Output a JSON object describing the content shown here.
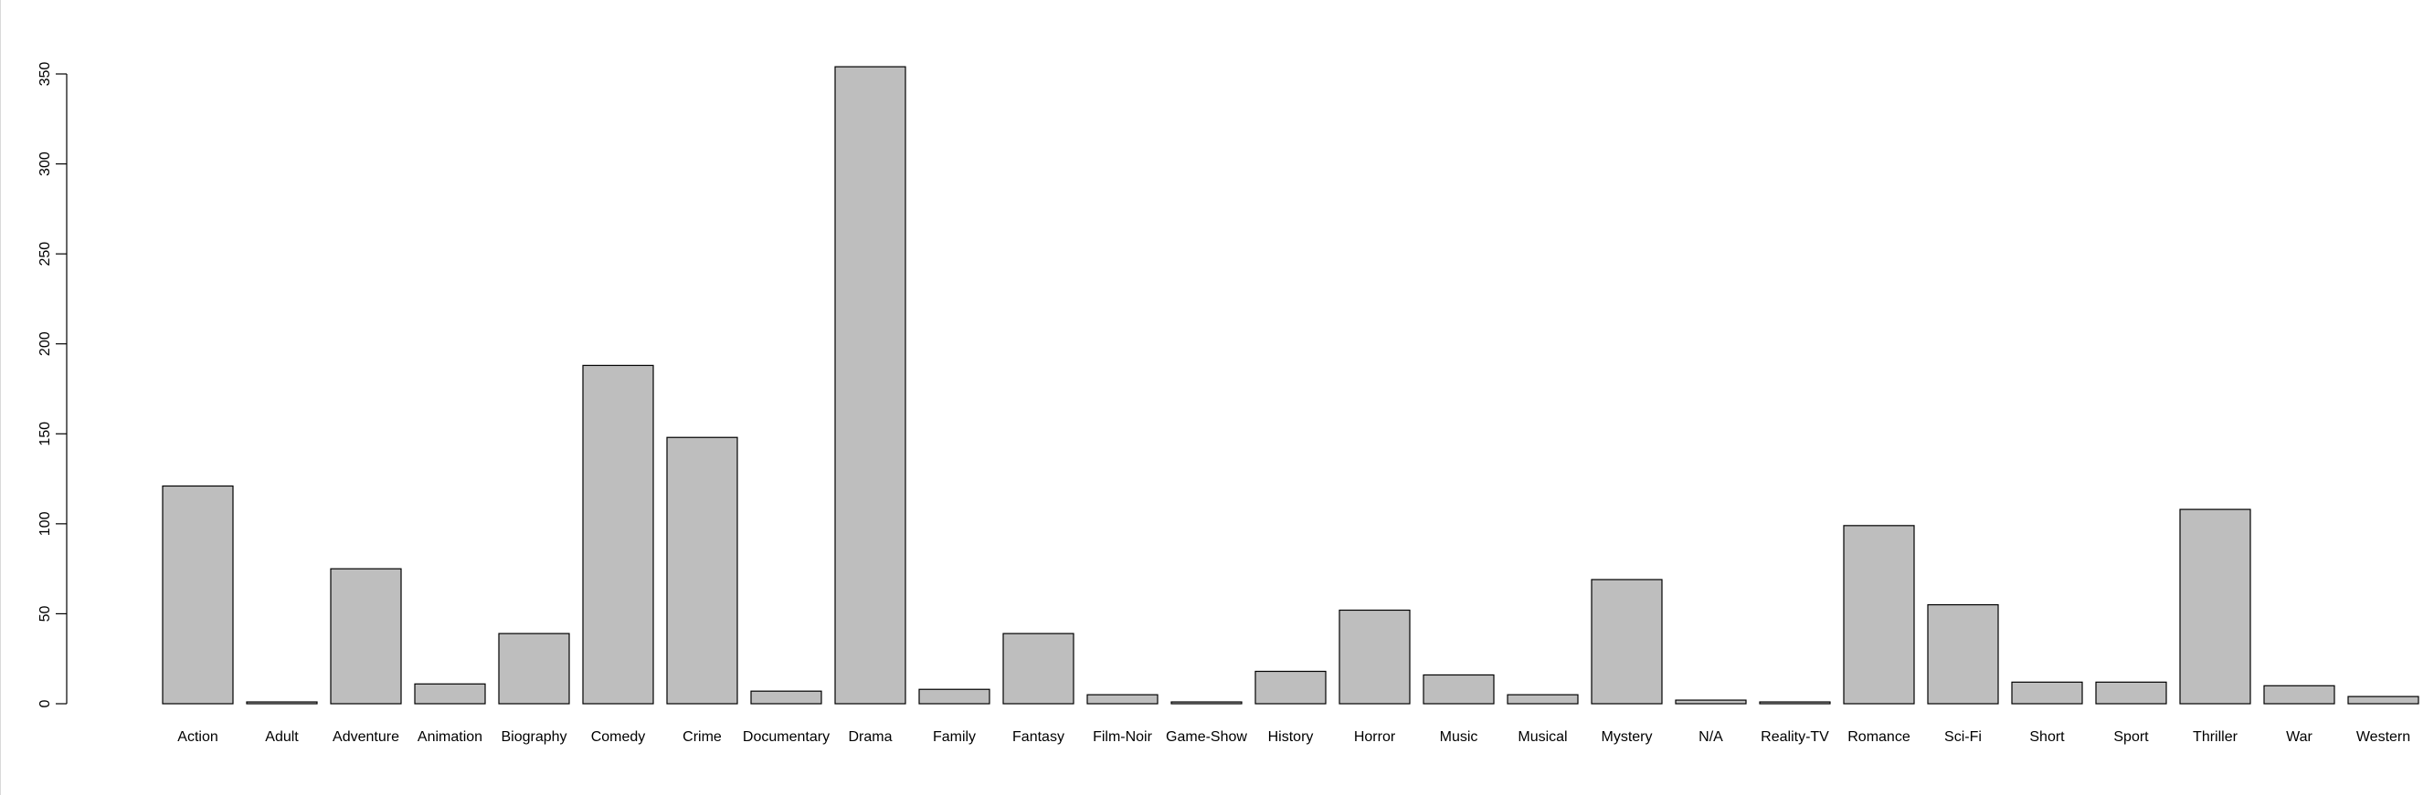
{
  "chart_data": {
    "type": "bar",
    "title": "",
    "xlabel": "",
    "ylabel": "",
    "ylim": [
      0,
      350
    ],
    "yticks": [
      0,
      50,
      100,
      150,
      200,
      250,
      300,
      350
    ],
    "grid": false,
    "legend": "none",
    "colors": {
      "bar_fill": "#bebebe",
      "bar_stroke": "#000000"
    },
    "categories": [
      "Action",
      "Adult",
      "Adventure",
      "Animation",
      "Biography",
      "Comedy",
      "Crime",
      "Documentary",
      "Drama",
      "Family",
      "Fantasy",
      "Film-Noir",
      "Game-Show",
      "History",
      "Horror",
      "Music",
      "Musical",
      "Mystery",
      "N/A",
      "Reality-TV",
      "Romance",
      "Sci-Fi",
      "Short",
      "Sport",
      "Thriller",
      "War",
      "Western"
    ],
    "values": [
      121,
      1,
      75,
      11,
      39,
      188,
      148,
      7,
      354,
      8,
      39,
      5,
      1,
      18,
      52,
      16,
      5,
      69,
      2,
      1,
      99,
      55,
      12,
      12,
      108,
      10,
      4
    ]
  }
}
